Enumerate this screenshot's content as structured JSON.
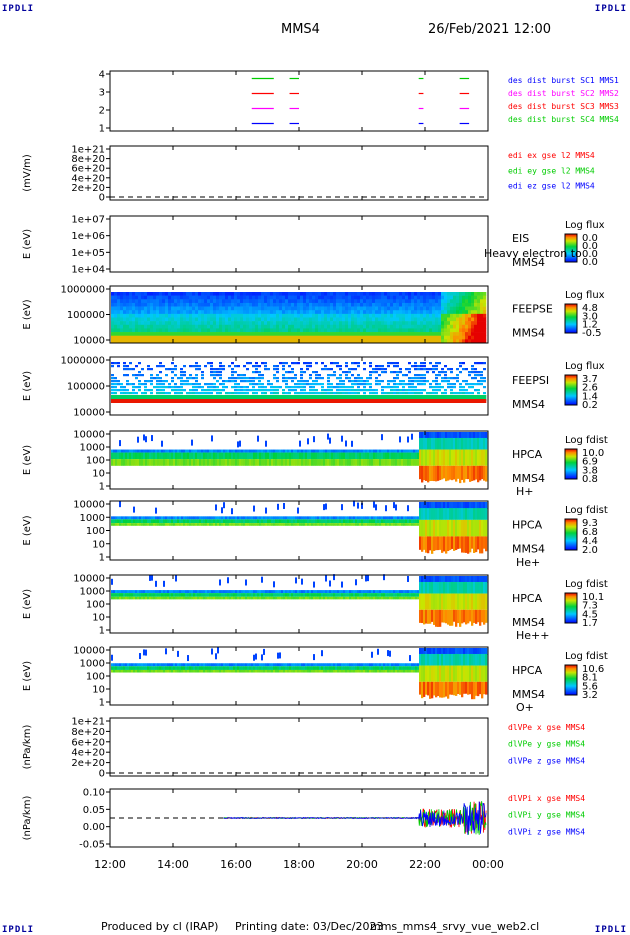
{
  "corner_label": "IPDLI",
  "header": {
    "spacecraft": "MMS4",
    "datetime": "26/Feb/2021 12:00"
  },
  "footer": {
    "produced_by": "Produced by cl (IRAP)",
    "printing_date": "Printing date: 03/Dec/2023",
    "script": "mms_mms4_srvy_vue_web2.cl"
  },
  "time_axis": {
    "ticks": [
      "12:00",
      "14:00",
      "16:00",
      "18:00",
      "20:00",
      "22:00",
      "00:00"
    ]
  },
  "colors": {
    "red": "#ff0000",
    "green": "#00cc00",
    "blue": "#0000ff",
    "magenta": "#ff00ff",
    "axis": "#000000"
  },
  "chart_data": [
    {
      "type": "line",
      "panel": "burst",
      "yticks": [
        "4",
        "3",
        "2",
        "1"
      ],
      "ylim": [
        0.5,
        4.5
      ],
      "legend": [
        {
          "text": "des dist burst SC1 MMS1",
          "color": "#0000ff"
        },
        {
          "text": "des dist burst SC2 MMS2",
          "color": "#ff00ff"
        },
        {
          "text": "des dist burst SC3 MMS3",
          "color": "#ff0000"
        },
        {
          "text": "des dist burst SC4 MMS4",
          "color": "#00cc00"
        }
      ],
      "series": [
        {
          "level": 4,
          "color": "#00cc00",
          "segments": [
            [
              16.5,
              17.2
            ],
            [
              17.7,
              18.0
            ],
            [
              21.8,
              21.95
            ],
            [
              23.1,
              23.4
            ]
          ]
        },
        {
          "level": 3,
          "color": "#ff0000",
          "segments": [
            [
              16.5,
              17.2
            ],
            [
              17.7,
              18.0
            ],
            [
              21.8,
              21.95
            ],
            [
              23.1,
              23.4
            ]
          ]
        },
        {
          "level": 2,
          "color": "#ff00ff",
          "segments": [
            [
              16.5,
              17.2
            ],
            [
              17.7,
              18.0
            ],
            [
              21.8,
              21.95
            ],
            [
              23.1,
              23.4
            ]
          ]
        },
        {
          "level": 1,
          "color": "#0000ff",
          "segments": [
            [
              16.5,
              17.2
            ],
            [
              17.7,
              18.0
            ],
            [
              21.8,
              21.95
            ],
            [
              23.1,
              23.4
            ]
          ]
        }
      ]
    },
    {
      "type": "line",
      "panel": "edi",
      "ylabel": "(mV/m)",
      "yticks": [
        "1e+21",
        "8e+20",
        "6e+20",
        "4e+20",
        "2e+20",
        "0"
      ],
      "legend": [
        {
          "text": "edi ex gse l2 MMS4",
          "color": "#ff0000"
        },
        {
          "text": "edi ey gse l2 MMS4",
          "color": "#00cc00"
        },
        {
          "text": "edi ez gse l2 MMS4",
          "color": "#0000ff"
        }
      ]
    },
    {
      "type": "heatmap",
      "panel": "eis",
      "ylabel": "E (eV)",
      "yticks": [
        "1e+07",
        "1e+06",
        "1e+05",
        "1e+04"
      ],
      "instrument": "EIS",
      "spacecraft": "MMS4",
      "overlay_text": "Heavy electron to",
      "colorbar_title": "Log flux",
      "colorbar_ticks": [
        "0.0",
        "0.0",
        "0.0",
        "0.0"
      ]
    },
    {
      "type": "heatmap",
      "panel": "feepse",
      "ylabel": "E (eV)",
      "yticks": [
        "1000000",
        "100000",
        "10000"
      ],
      "instrument": "FEEPSE",
      "spacecraft": "MMS4",
      "colorbar_title": "Log flux",
      "colorbar_ticks": [
        "4.8",
        "3.0",
        "1.2",
        "-0.5"
      ]
    },
    {
      "type": "heatmap",
      "panel": "feepsi",
      "ylabel": "E (eV)",
      "yticks": [
        "1000000",
        "100000",
        "10000"
      ],
      "instrument": "FEEPSI",
      "spacecraft": "MMS4",
      "colorbar_title": "Log flux",
      "colorbar_ticks": [
        "3.7",
        "2.6",
        "1.4",
        "0.2"
      ]
    },
    {
      "type": "heatmap",
      "panel": "hpca-h",
      "ylabel": "E (eV)",
      "yticks": [
        "10000",
        "1000",
        "100",
        "10",
        "1"
      ],
      "instrument": "HPCA",
      "spacecraft": "MMS4",
      "species": "H+",
      "colorbar_title": "Log fdist",
      "colorbar_ticks": [
        "10.0",
        "6.9",
        "3.8",
        "0.8"
      ]
    },
    {
      "type": "heatmap",
      "panel": "hpca-he",
      "ylabel": "E (eV)",
      "yticks": [
        "10000",
        "1000",
        "100",
        "10",
        "1"
      ],
      "instrument": "HPCA",
      "spacecraft": "MMS4",
      "species": "He+",
      "colorbar_title": "Log fdist",
      "colorbar_ticks": [
        "9.3",
        "6.8",
        "4.4",
        "2.0"
      ]
    },
    {
      "type": "heatmap",
      "panel": "hpca-hepp",
      "ylabel": "E (eV)",
      "yticks": [
        "10000",
        "1000",
        "100",
        "10",
        "1"
      ],
      "instrument": "HPCA",
      "spacecraft": "MMS4",
      "species": "He++",
      "colorbar_title": "Log fdist",
      "colorbar_ticks": [
        "10.1",
        "7.3",
        "4.5",
        "1.7"
      ]
    },
    {
      "type": "heatmap",
      "panel": "hpca-o",
      "ylabel": "E (eV)",
      "yticks": [
        "10000",
        "1000",
        "100",
        "10",
        "1"
      ],
      "instrument": "HPCA",
      "spacecraft": "MMS4",
      "species": "O+",
      "colorbar_title": "Log fdist",
      "colorbar_ticks": [
        "10.6",
        "8.1",
        "5.6",
        "3.2"
      ]
    },
    {
      "type": "line",
      "panel": "dlvpe",
      "ylabel": "(nPa/km)",
      "yticks": [
        "1e+21",
        "8e+20",
        "6e+20",
        "4e+20",
        "2e+20",
        "0"
      ],
      "legend": [
        {
          "text": "dlVPe x gse MMS4",
          "color": "#ff0000"
        },
        {
          "text": "dlVPe y gse MMS4",
          "color": "#00cc00"
        },
        {
          "text": "dlVPe z gse MMS4",
          "color": "#0000ff"
        }
      ]
    },
    {
      "type": "line",
      "panel": "dlvpi",
      "ylabel": "(nPa/km)",
      "yticks": [
        "0.10",
        "0.05",
        "0.00",
        "-0.05"
      ],
      "ylim": [
        -0.1,
        0.1
      ],
      "legend": [
        {
          "text": "dlVPi x gse MMS4",
          "color": "#ff0000"
        },
        {
          "text": "dlVPi y gse MMS4",
          "color": "#00cc00"
        },
        {
          "text": "dlVPi z gse MMS4",
          "color": "#0000ff"
        }
      ]
    }
  ]
}
